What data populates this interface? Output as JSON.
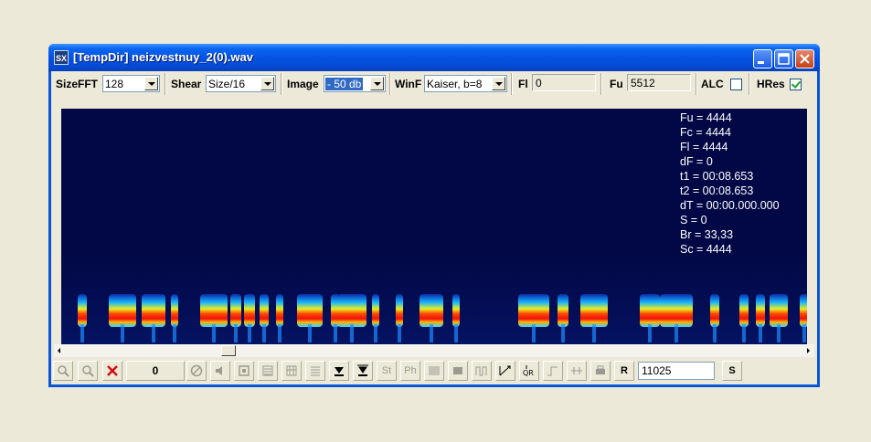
{
  "window": {
    "icon_text": "SX",
    "title": "[TempDir] neizvestnuy_2(0).wav"
  },
  "toolbar": {
    "sizefft_label": "SizeFFT",
    "sizefft_value": "128",
    "shear_label": "Shear",
    "shear_value": "Size/16",
    "image_label": "Image",
    "image_value": "- 50 db",
    "winf_label": "WinF",
    "winf_value": "Kaiser, b=8",
    "fl_label": "Fl",
    "fl_value": "0",
    "fu_label": "Fu",
    "fu_value": "5512",
    "alc_label": "ALC",
    "alc_checked": false,
    "hres_label": "HRes",
    "hres_checked": true
  },
  "readout": {
    "fu": "Fu = 4444",
    "fc": "Fc = 4444",
    "fl": "Fl = 4444",
    "df": "dF = 0",
    "t1": "t1 = 00:08.653",
    "t2": "t2 = 00:08.653",
    "dt": "dT = 00:00.000.000",
    "s": "S = 0",
    "br": "Br = 33,33",
    "sc": "Sc = 4444"
  },
  "bottombar": {
    "count_value": "0",
    "st_label": "St",
    "ph_label": "Ph",
    "r_label": "R",
    "rate_value": "11025",
    "s_label": "S"
  },
  "colors": {
    "spectrogram_bg": "#020845",
    "titlebar": "#0554E3",
    "face": "#ECE9D8"
  }
}
